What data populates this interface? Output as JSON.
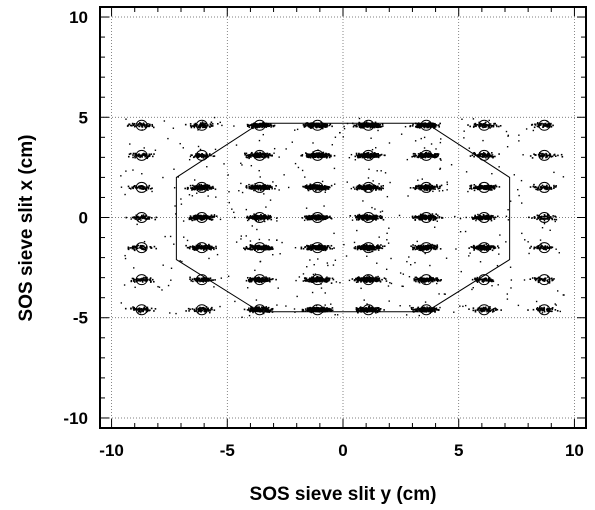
{
  "chart_data": {
    "type": "scatter",
    "title": "",
    "xlabel": "SOS sieve slit y (cm)",
    "ylabel": "SOS sieve slit x (cm)",
    "xlim": [
      -10.5,
      10.5
    ],
    "ylim": [
      -10.5,
      10.5
    ],
    "x_ticks": [
      -10,
      -5,
      0,
      5,
      10
    ],
    "y_ticks": [
      -10,
      -5,
      0,
      5,
      10
    ],
    "grid": true,
    "grid_style": "dotted",
    "sieve_hole_y": [
      -8.7,
      -6.1,
      -3.6,
      -1.1,
      1.1,
      3.6,
      6.1,
      8.7
    ],
    "sieve_hole_x": [
      -4.6,
      -3.1,
      -1.5,
      0,
      1.5,
      3.1,
      4.6
    ],
    "acceptance_polygon": [
      [
        -3.6,
        4.7
      ],
      [
        3.6,
        4.7
      ],
      [
        7.2,
        2.0
      ],
      [
        7.2,
        -2.1
      ],
      [
        3.6,
        -4.7
      ],
      [
        -3.6,
        -4.7
      ],
      [
        -7.2,
        -2.1
      ],
      [
        -7.2,
        2.0
      ]
    ],
    "point_color": "#000000"
  }
}
